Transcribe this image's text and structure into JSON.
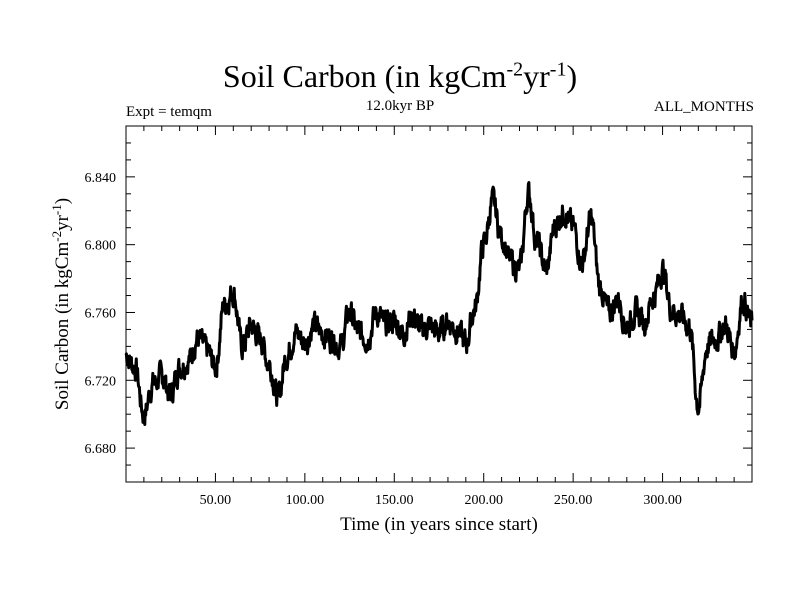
{
  "header": {
    "title_main": "Soil Carbon (in kgCm",
    "title_sup1": "-2",
    "title_mid": "yr",
    "title_sup2": "-1",
    "title_end": ")",
    "subtitle": "12.0kyr BP",
    "expt_label": "Expt = temqm",
    "months_label": "ALL_MONTHS"
  },
  "chart_data": {
    "type": "line",
    "title": "Soil Carbon (in kgCm-2yr-1)",
    "xlabel": "Time (in years since start)",
    "ylabel": "Soil Carbon (in kgCm-2yr-1)",
    "ylabel_parts": {
      "main": "Soil Carbon (in kgCm",
      "sup1": "-2",
      "mid": "yr",
      "sup2": "-1",
      "end": ")"
    },
    "xlim": [
      0,
      350
    ],
    "ylim": [
      6.66,
      6.87
    ],
    "x_ticks": [
      50,
      100,
      150,
      200,
      250,
      300
    ],
    "x_tick_labels": [
      "50.00",
      "100.00",
      "150.00",
      "200.00",
      "250.00",
      "300.00"
    ],
    "y_ticks": [
      6.68,
      6.72,
      6.76,
      6.8,
      6.84
    ],
    "y_tick_labels": [
      "6.680",
      "6.720",
      "6.760",
      "6.800",
      "6.840"
    ],
    "grid": false,
    "line_color": "#000000",
    "series": [
      {
        "x": [
          0,
          5,
          10,
          15,
          20,
          25,
          30,
          35,
          40,
          45,
          50,
          55,
          60,
          65,
          70,
          75,
          80,
          85,
          90,
          95,
          100,
          105,
          110,
          115,
          120,
          125,
          130,
          135,
          140,
          145,
          150,
          155,
          160,
          165,
          170,
          175,
          180,
          185,
          190,
          195,
          200,
          205,
          210,
          215,
          220,
          225,
          230,
          235,
          240,
          245,
          250,
          255,
          260,
          265,
          270,
          275,
          280,
          285,
          290,
          295,
          300,
          305,
          310,
          315,
          320,
          325,
          330,
          335,
          340,
          345,
          350
        ],
        "y": [
          6.735,
          6.728,
          6.7,
          6.718,
          6.722,
          6.712,
          6.728,
          6.732,
          6.745,
          6.738,
          6.728,
          6.765,
          6.772,
          6.74,
          6.752,
          6.745,
          6.73,
          6.71,
          6.735,
          6.748,
          6.742,
          6.752,
          6.748,
          6.745,
          6.74,
          6.76,
          6.748,
          6.745,
          6.76,
          6.752,
          6.755,
          6.748,
          6.758,
          6.75,
          6.752,
          6.748,
          6.755,
          6.75,
          6.742,
          6.762,
          6.8,
          6.825,
          6.805,
          6.79,
          6.785,
          6.83,
          6.8,
          6.785,
          6.812,
          6.82,
          6.81,
          6.79,
          6.815,
          6.775,
          6.76,
          6.768,
          6.752,
          6.76,
          6.755,
          6.77,
          6.785,
          6.762,
          6.758,
          6.752,
          6.705,
          6.74,
          6.745,
          6.752,
          6.738,
          6.768,
          6.752
        ]
      }
    ]
  }
}
